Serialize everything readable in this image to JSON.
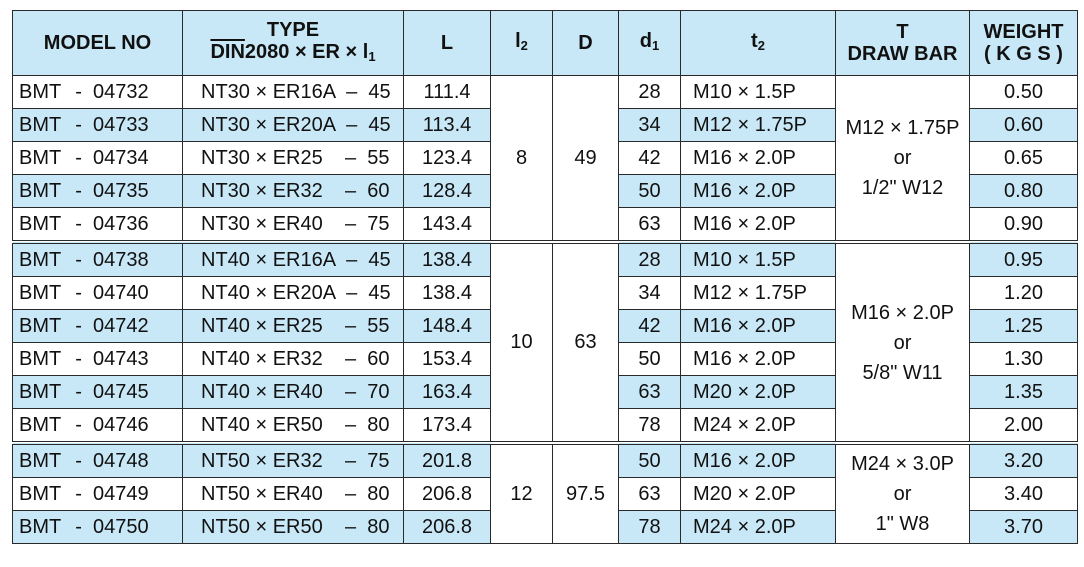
{
  "headers": {
    "model_no": "MODEL NO",
    "type_line1": "TYPE",
    "type_din": "DIN",
    "type_line2_rest": "2080 × ER × l",
    "type_line2_sub": "1",
    "L": "L",
    "l2_main": "l",
    "l2_sub": "2",
    "D": "D",
    "d1_main": "d",
    "d1_sub": "1",
    "t2_main": "t",
    "t2_sub": "2",
    "t_line1": "T",
    "t_line2": "DRAW BAR",
    "weight_line1": "WEIGHT",
    "weight_line2": "( K G S )"
  },
  "groups": [
    {
      "l2": "8",
      "D": "49",
      "drawbar": [
        "M12 × 1.75P",
        "or",
        "1/2\" W12"
      ],
      "rows": [
        {
          "prefix": "BMT",
          "num": "-  04732",
          "type": "NT30 × ER16A  –  45",
          "L": "111.4",
          "d1": "28",
          "t2": "M10 × 1.5P",
          "weight": "0.50"
        },
        {
          "prefix": "BMT",
          "num": "-  04733",
          "type": "NT30 × ER20A  –  45",
          "L": "113.4",
          "d1": "34",
          "t2": "M12 × 1.75P",
          "weight": "0.60"
        },
        {
          "prefix": "BMT",
          "num": "-  04734",
          "type": "NT30 × ER25    –  55",
          "L": "123.4",
          "d1": "42",
          "t2": "M16 × 2.0P",
          "weight": "0.65"
        },
        {
          "prefix": "BMT",
          "num": "-  04735",
          "type": "NT30 × ER32    –  60",
          "L": "128.4",
          "d1": "50",
          "t2": "M16 × 2.0P",
          "weight": "0.80"
        },
        {
          "prefix": "BMT",
          "num": "-  04736",
          "type": "NT30 × ER40    –  75",
          "L": "143.4",
          "d1": "63",
          "t2": "M16 × 2.0P",
          "weight": "0.90"
        }
      ]
    },
    {
      "l2": "10",
      "D": "63",
      "drawbar": [
        "M16 × 2.0P",
        "or",
        "5/8\" W11"
      ],
      "rows": [
        {
          "prefix": "BMT",
          "num": "-  04738",
          "type": "NT40 × ER16A  –  45",
          "L": "138.4",
          "d1": "28",
          "t2": "M10 × 1.5P",
          "weight": "0.95"
        },
        {
          "prefix": "BMT",
          "num": "-  04740",
          "type": "NT40 × ER20A  –  45",
          "L": "138.4",
          "d1": "34",
          "t2": "M12 × 1.75P",
          "weight": "1.20"
        },
        {
          "prefix": "BMT",
          "num": "-  04742",
          "type": "NT40 × ER25    –  55",
          "L": "148.4",
          "d1": "42",
          "t2": "M16 × 2.0P",
          "weight": "1.25"
        },
        {
          "prefix": "BMT",
          "num": "-  04743",
          "type": "NT40 × ER32    –  60",
          "L": "153.4",
          "d1": "50",
          "t2": "M16 × 2.0P",
          "weight": "1.30"
        },
        {
          "prefix": "BMT",
          "num": "-  04745",
          "type": "NT40 × ER40    –  70",
          "L": "163.4",
          "d1": "63",
          "t2": "M20 × 2.0P",
          "weight": "1.35"
        },
        {
          "prefix": "BMT",
          "num": "-  04746",
          "type": "NT40 × ER50    –  80",
          "L": "173.4",
          "d1": "78",
          "t2": "M24 × 2.0P",
          "weight": "2.00"
        }
      ]
    },
    {
      "l2": "12",
      "D": "97.5",
      "drawbar": [
        "M24 × 3.0P",
        "or",
        "1\" W8"
      ],
      "rows": [
        {
          "prefix": "BMT",
          "num": "-  04748",
          "type": "NT50 × ER32    –  75",
          "L": "201.8",
          "d1": "50",
          "t2": "M16 × 2.0P",
          "weight": "3.20"
        },
        {
          "prefix": "BMT",
          "num": "-  04749",
          "type": "NT50 × ER40    –  80",
          "L": "206.8",
          "d1": "63",
          "t2": "M20 × 2.0P",
          "weight": "3.40"
        },
        {
          "prefix": "BMT",
          "num": "-  04750",
          "type": "NT50 × ER50    –  80",
          "L": "206.8",
          "d1": "78",
          "t2": "M24 × 2.0P",
          "weight": "3.70"
        }
      ]
    }
  ]
}
